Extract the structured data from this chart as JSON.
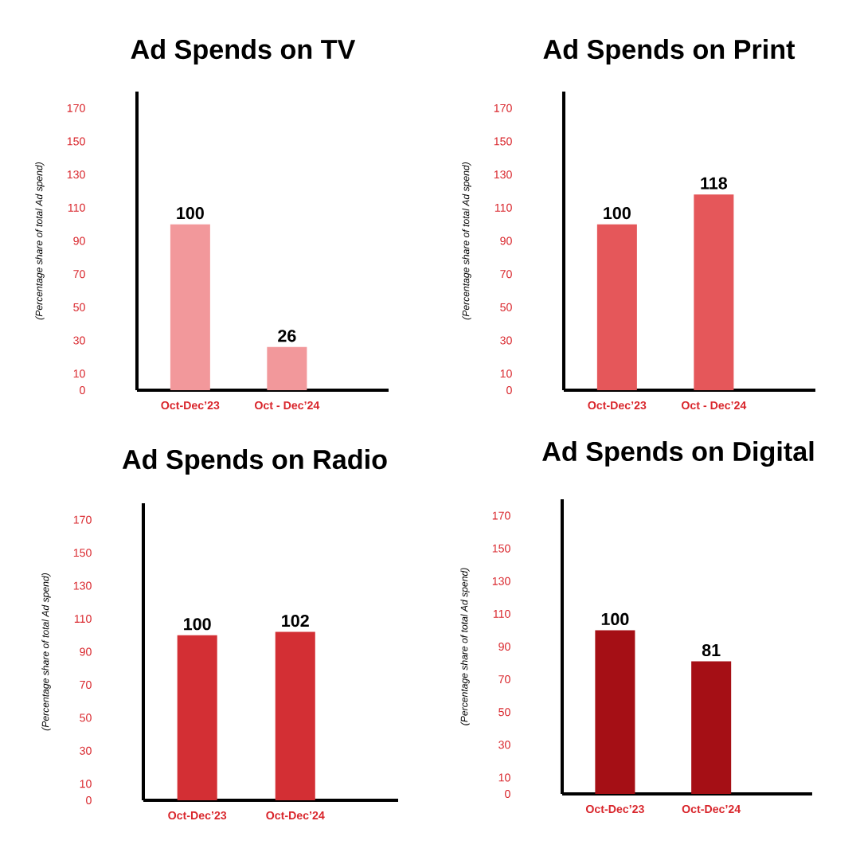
{
  "chart_data": [
    {
      "type": "bar",
      "title": "Ad Spends on TV",
      "ylabel": "(Percentage share of total Ad spend)",
      "categories": [
        "Oct-Dec’23",
        "Oct - Dec’24"
      ],
      "series": [
        {
          "color": "#f2989b",
          "values": [
            100,
            26
          ]
        }
      ],
      "ylim": [
        0,
        180
      ],
      "yticks": [
        0,
        10,
        30,
        50,
        70,
        90,
        110,
        130,
        150,
        170
      ],
      "data_labels": true,
      "grid": false
    },
    {
      "type": "bar",
      "title": "Ad Spends on Print",
      "ylabel": "(Percentage share of total Ad spend)",
      "categories": [
        "Oct-Dec’23",
        "Oct - Dec’24"
      ],
      "series": [
        {
          "color": "#e5575a",
          "values": [
            100,
            118
          ]
        }
      ],
      "ylim": [
        0,
        180
      ],
      "yticks": [
        0,
        10,
        30,
        50,
        70,
        90,
        110,
        130,
        150,
        170
      ],
      "data_labels": true,
      "grid": false
    },
    {
      "type": "bar",
      "title": "Ad Spends on Radio",
      "ylabel": "(Percentage share of total Ad spend)",
      "categories": [
        "Oct-Dec’23",
        "Oct-Dec’24"
      ],
      "series": [
        {
          "color": "#d32f34",
          "values": [
            100,
            102
          ]
        }
      ],
      "ylim": [
        0,
        180
      ],
      "yticks": [
        0,
        10,
        30,
        50,
        70,
        90,
        110,
        130,
        150,
        170
      ],
      "data_labels": true,
      "grid": false
    },
    {
      "type": "bar",
      "title": "Ad Spends on Digital",
      "ylabel": "(Percentage share of total Ad spend)",
      "categories": [
        "Oct-Dec’23",
        "Oct-Dec’24"
      ],
      "series": [
        {
          "color": "#a50f15",
          "values": [
            100,
            81
          ]
        }
      ],
      "ylim": [
        0,
        180
      ],
      "yticks": [
        0,
        10,
        30,
        50,
        70,
        90,
        110,
        130,
        150,
        170
      ],
      "data_labels": true,
      "grid": false
    }
  ]
}
